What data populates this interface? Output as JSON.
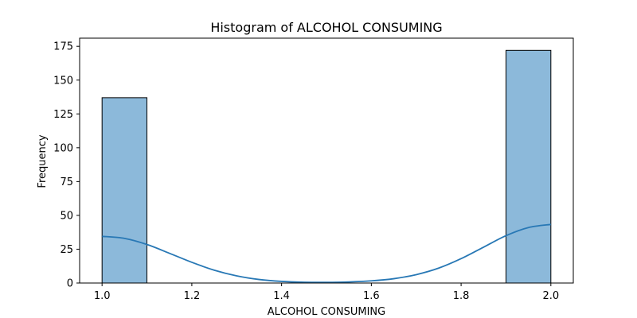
{
  "chart_data": {
    "type": "bar",
    "subtype": "histogram",
    "title": "Histogram of ALCOHOL CONSUMING",
    "xlabel": "ALCOHOL CONSUMING",
    "ylabel": "Frequency",
    "xlim": [
      0.95,
      2.05
    ],
    "ylim": [
      0,
      181
    ],
    "x_ticks": [
      1.0,
      1.2,
      1.4,
      1.6,
      1.8,
      2.0
    ],
    "x_tick_labels": [
      "1.0",
      "1.2",
      "1.4",
      "1.6",
      "1.8",
      "2.0"
    ],
    "y_ticks": [
      0,
      25,
      50,
      75,
      100,
      125,
      150,
      175
    ],
    "y_tick_labels": [
      "0",
      "25",
      "50",
      "75",
      "100",
      "125",
      "150",
      "175"
    ],
    "bins": [
      {
        "x0": 1.0,
        "x1": 1.1,
        "count": 137
      },
      {
        "x0": 1.1,
        "x1": 1.2,
        "count": 0
      },
      {
        "x0": 1.2,
        "x1": 1.3,
        "count": 0
      },
      {
        "x0": 1.3,
        "x1": 1.4,
        "count": 0
      },
      {
        "x0": 1.4,
        "x1": 1.5,
        "count": 0
      },
      {
        "x0": 1.5,
        "x1": 1.6,
        "count": 0
      },
      {
        "x0": 1.6,
        "x1": 1.7,
        "count": 0
      },
      {
        "x0": 1.7,
        "x1": 1.8,
        "count": 0
      },
      {
        "x0": 1.8,
        "x1": 1.9,
        "count": 0
      },
      {
        "x0": 1.9,
        "x1": 2.0,
        "count": 172
      }
    ],
    "kde": {
      "x": [
        1.0,
        1.05,
        1.1,
        1.15,
        1.2,
        1.25,
        1.3,
        1.35,
        1.4,
        1.45,
        1.5,
        1.55,
        1.6,
        1.65,
        1.7,
        1.75,
        1.8,
        1.85,
        1.9,
        1.95,
        2.0
      ],
      "y": [
        34.5,
        33.0,
        28.5,
        22.0,
        15.3,
        9.5,
        5.3,
        2.6,
        1.2,
        0.6,
        0.5,
        0.8,
        1.6,
        3.2,
        6.2,
        11.0,
        18.0,
        26.5,
        35.0,
        41.0,
        43.3
      ]
    },
    "colors": {
      "bar_fill": "#8cb9da",
      "bar_edge": "#000000",
      "kde_line": "#2878b5",
      "axis": "#000000"
    },
    "grid": false,
    "legend": "none"
  }
}
